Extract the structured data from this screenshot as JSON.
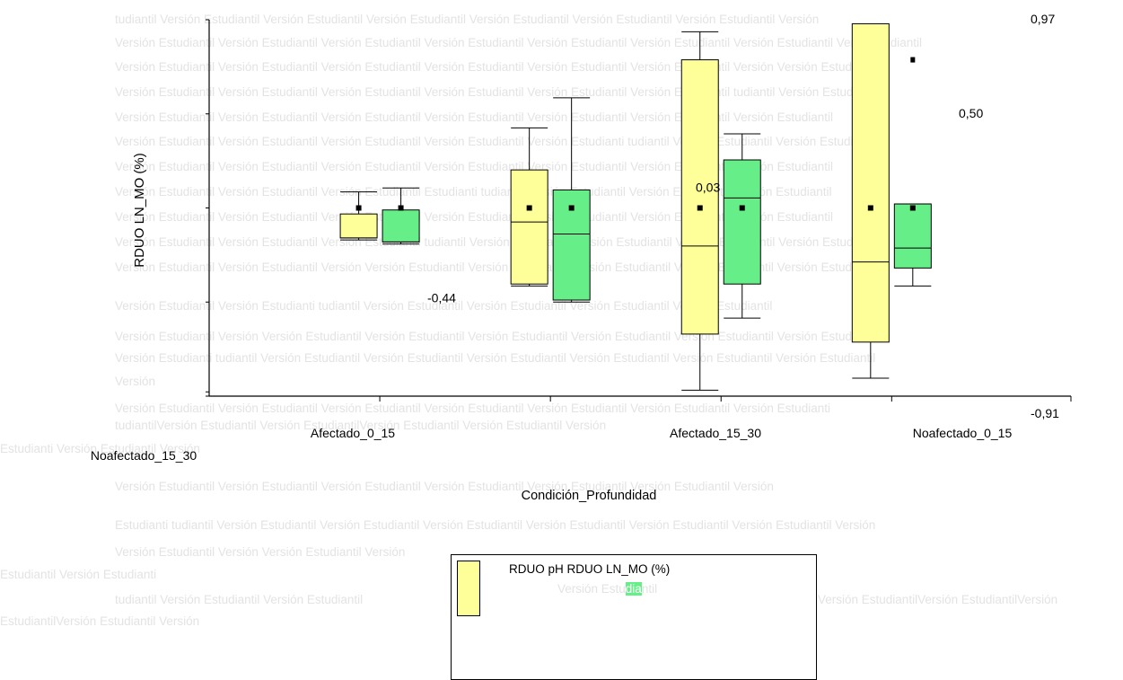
{
  "watermark": {
    "rows": [
      {
        "y": 22,
        "x": 128,
        "text": "tudiantil Versión Estudiantil Versión Estudiantil Versión Estudiantil Versión Estudiantil Versión Estudiantil Versión Estudiantil Versión"
      },
      {
        "y": 48,
        "x": 128,
        "text": "Versión Estudiantil Versión Estudiantil Versión Estudiantil Versión Estudiantil Versión Estudiantil Versión Estudiantil Versión Estudiantil Versión tudiantil"
      },
      {
        "y": 75,
        "x": 128,
        "text": "Versión Estudiantil Versión Estudiantil Versión Estudiantil Versión Estudiantil Versión Estudiantil Versión Estudiantil Versión Versión Estudiantil"
      },
      {
        "y": 103,
        "x": 128,
        "text": "Versión Estudiantil Versión Estudiantil Versión Estudiantil Versión Estudiantil Versión Estudiantil Versión Estudiantil tudiantil Versión Estudiantil"
      },
      {
        "y": 131,
        "x": 128,
        "text": "Versión Estudiantil Versión Estudiantil Versión Estudiantil Versión Estudiantil Versión Estudiantil Versión Estudiantil Versión Estudiantil"
      },
      {
        "y": 158,
        "x": 128,
        "text": "Versión Estudiantil Versión Estudiantil Versión Estudiantil Versión Estudiantil Versión Estudianti tudiantil Versión Estudiantil Versión Estudiantil"
      },
      {
        "y": 186,
        "x": 128,
        "text": "Versión Estudiantil Versión Estudiantil Versión Estudiantil Versión Estudiantil Versión Estudiantil Versión Estudiantil Versión Estudiantil"
      },
      {
        "y": 214,
        "x": 128,
        "text": "Versión Estudiantil Versión Estudiantil Versión Estudiantil Estudianti tudiantil Versión Estudiantil Versión Estudiantil Versión Estudiantil"
      },
      {
        "y": 242,
        "x": 128,
        "text": "Versión Estudiantil Versión Estudiantil Versión Estudiantil Versión Estudiantil Versión Estudiantil Versión Estudiantil Versión Estudiantil"
      },
      {
        "y": 270,
        "x": 128,
        "text": "Versión Estudiantil Versión Estudiantil Versión Estudiantil tudiantil Versión Estudiantil Versión Estudiantil Versión Estudiantil Versión Estudiantil"
      },
      {
        "y": 298,
        "x": 128,
        "text": "Versión Estudiantil Versión Estudiantil Versión Versión Estudiantil Versión Estudiantil Versión Estudiantil Versión Estudiantil Versión Estudiantil"
      },
      {
        "y": 341,
        "x": 128,
        "text": "Versión Estudiantil Versión Estudianti tudiantil      Versión Estudiantil Versión Estudiantil Versión Estudiantil Versión Estudiantil"
      },
      {
        "y": 375,
        "x": 128,
        "text": "Versión Estudiantil Versión Versión Estudiantil Versión Estudiantil Versión Estudiantil Versión Estudiantil Versión Estudiantil Versión Estudiantil"
      },
      {
        "y": 399,
        "x": 128,
        "text": "Versión Estudianti tudiantil Versión Estudiantil Versión Estudiantil Versión Estudiantil Versión Estudiantil Versión Estudiantil Versión Estudiantil"
      },
      {
        "y": 425,
        "x": 128,
        "text": "Versión"
      },
      {
        "y": 455,
        "x": 128,
        "text": "Versión Estudiantil Versión Estudiantil Versión Estudiantil Versión Estudiantil Versión Estudiantil Versión Estudiantil Versión Estudianti"
      },
      {
        "y": 474,
        "x": 128,
        "text": "tudiantilVersión Estudiantil                    Versión EstudiantilVersión Estudiantil                    Versión Estudiantil                    Versión"
      },
      {
        "y": 500,
        "x": 0,
        "text": "Estudianti                    Versión Estudiantil                                                                                                                  Versión"
      },
      {
        "y": 542,
        "x": 128,
        "text": "Versión Estudiantil Versión Estudiantil Versión Estudiantil                              Versión Estudiantil Versión Estudiantil Versión Estudiantil Versión"
      },
      {
        "y": 585,
        "x": 128,
        "text": "Estudianti tudiantil Versión Estudiantil Versión Estudiantil Versión Estudiantil Versión Estudiantil Versión Estudiantil Versión Estudiantil Versión"
      },
      {
        "y": 615,
        "x": 128,
        "text": "Versión Estudiantil          Versión                                                                                          Versión Estudiantil  Versión"
      },
      {
        "y": 640,
        "x": 0,
        "text": "Estudiantil       Versión Estudianti"
      },
      {
        "y": 668,
        "x": 128,
        "text": "tudiantil    Versión Estudiantil  Versión Estudiantil"
      },
      {
        "y": 668,
        "x": 911,
        "text": "Versión EstudiantilVersión EstudiantilVersión"
      },
      {
        "y": 692,
        "x": 0,
        "text": "EstudiantilVersión Estudiantil    Versión"
      }
    ]
  },
  "chart_data": {
    "type": "boxplot",
    "ylabel": "RDUO LN_MO (%)",
    "xlabel": "Condición_Profundidad",
    "categories": [
      "Afectado_0_15",
      "Noafectado_15_30",
      "Afectado_15_30",
      "Noafectado_0_15"
    ],
    "ylim": [
      -0.91,
      0.97
    ],
    "series": [
      {
        "name": "RDUO pH",
        "color": "#ffff99"
      },
      {
        "name": "RDUO LN_MO (%)",
        "color": "#66ee88"
      }
    ],
    "boxes": [
      {
        "category": "Afectado_0_15",
        "series": 0,
        "whisker_low": -0.13,
        "q1": -0.12,
        "median": -0.12,
        "q3": 0.0,
        "whisker_high": 0.11,
        "mean": 0.03
      },
      {
        "category": "Afectado_0_15",
        "series": 1,
        "whisker_low": -0.15,
        "q1": -0.14,
        "median": -0.14,
        "q3": 0.02,
        "whisker_high": 0.13,
        "mean": 0.03
      },
      {
        "category": "Noafectado_15_30",
        "series": 0,
        "whisker_low": -0.36,
        "q1": -0.35,
        "median": -0.04,
        "q3": 0.22,
        "whisker_high": 0.43,
        "mean": 0.03
      },
      {
        "category": "Noafectado_15_30",
        "series": 1,
        "whisker_low": -0.44,
        "q1": -0.43,
        "median": -0.1,
        "q3": 0.12,
        "whisker_high": 0.58,
        "mean": 0.03
      },
      {
        "category": "Afectado_15_30",
        "series": 0,
        "whisker_low": -0.88,
        "q1": -0.6,
        "median": -0.16,
        "q3": 0.77,
        "whisker_high": 0.91,
        "mean": 0.03
      },
      {
        "category": "Afectado_15_30",
        "series": 1,
        "whisker_low": -0.52,
        "q1": -0.35,
        "median": 0.08,
        "q3": 0.27,
        "whisker_high": 0.4,
        "mean": 0.03
      },
      {
        "category": "Noafectado_0_15",
        "series": 0,
        "whisker_low": -0.82,
        "q1": -0.64,
        "median": -0.24,
        "q3": 0.95,
        "whisker_high": 0.95,
        "mean": 0.03
      },
      {
        "category": "Noafectado_0_15",
        "series": 1,
        "whisker_low": -0.36,
        "q1": -0.27,
        "median": -0.17,
        "q3": 0.05,
        "whisker_high": 0.05,
        "mean": 0.03
      }
    ],
    "outliers": [
      {
        "category": "Noafectado_0_15",
        "series": 1,
        "value": 0.77
      }
    ],
    "annotations": [
      {
        "text": "0,97",
        "value": 0.97
      },
      {
        "text": "0,50",
        "value": 0.5
      },
      {
        "text": "0,03",
        "value": 0.03
      },
      {
        "text": "-0,44",
        "value": -0.44
      },
      {
        "text": "-0,91",
        "value": -0.91
      }
    ],
    "legend_text": "RDUO pH RDUO LN_MO (%)",
    "legend_placement": "bottom",
    "grid": false
  },
  "legend_watermark": {
    "before": "Versión Estu",
    "highlight": "dia",
    "after": "ntil"
  }
}
